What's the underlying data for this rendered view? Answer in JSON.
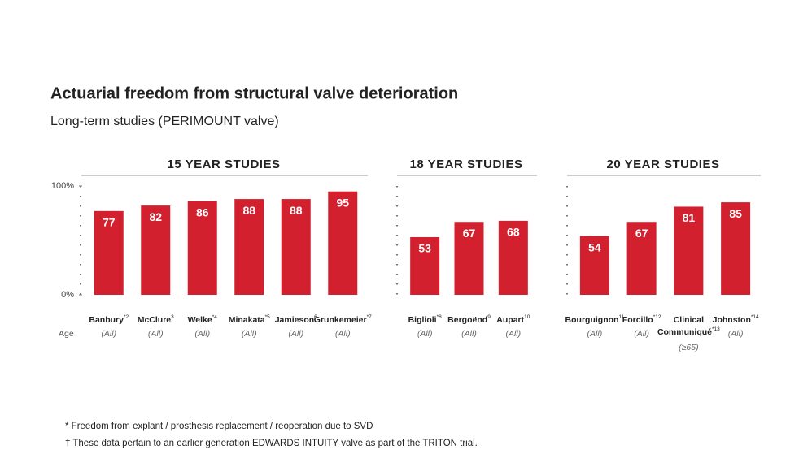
{
  "header": {
    "title": "Actuarial freedom from structural valve deterioration",
    "subtitle": "Long-term studies (PERIMOUNT valve)"
  },
  "chart_data": [
    {
      "type": "bar",
      "title": "15 YEAR STUDIES",
      "row_label": "Age",
      "color": "#d2202f",
      "ylim": [
        0,
        100
      ],
      "yticks": [
        {
          "value": 100,
          "label": "100%"
        },
        {
          "value": 0,
          "label": "0%"
        }
      ],
      "categories": [
        "Banbury",
        "McClure",
        "Welke",
        "Minakata",
        "Jamieson",
        "Grunkemeier"
      ],
      "category_notes": [
        "*2",
        "3",
        "*4",
        "*5",
        "6",
        "*7"
      ],
      "ages": [
        "(All)",
        "(All)",
        "(All)",
        "(All)",
        "(All)",
        "(All)"
      ],
      "values": [
        77,
        82,
        86,
        88,
        88,
        95
      ]
    },
    {
      "type": "bar",
      "title": "18 YEAR STUDIES",
      "color": "#d2202f",
      "ylim": [
        0,
        100
      ],
      "categories": [
        "Biglioli",
        "Bergoënd",
        "Aupart"
      ],
      "category_notes": [
        "*8",
        "9",
        "10"
      ],
      "ages": [
        "(All)",
        "(All)",
        "(All)"
      ],
      "values": [
        53,
        67,
        68
      ]
    },
    {
      "type": "bar",
      "title": "20 YEAR STUDIES",
      "color": "#d2202f",
      "ylim": [
        0,
        100
      ],
      "categories": [
        "Bourguignon",
        [
          "Forcillo"
        ],
        [
          "Clinical",
          "Communiqué"
        ],
        "Johnston"
      ],
      "category_notes": [
        "11",
        "*12",
        "*13",
        "*14"
      ],
      "ages": [
        "(All)",
        "(All)",
        "(≥65)",
        "(All)"
      ],
      "values": [
        54,
        67,
        81,
        85
      ]
    }
  ],
  "footnotes": [
    "* Freedom from explant / prosthesis replacement / reoperation due to SVD",
    "† These data pertain to an earlier generation EDWARDS INTUITY valve as part of the TRITON trial."
  ]
}
